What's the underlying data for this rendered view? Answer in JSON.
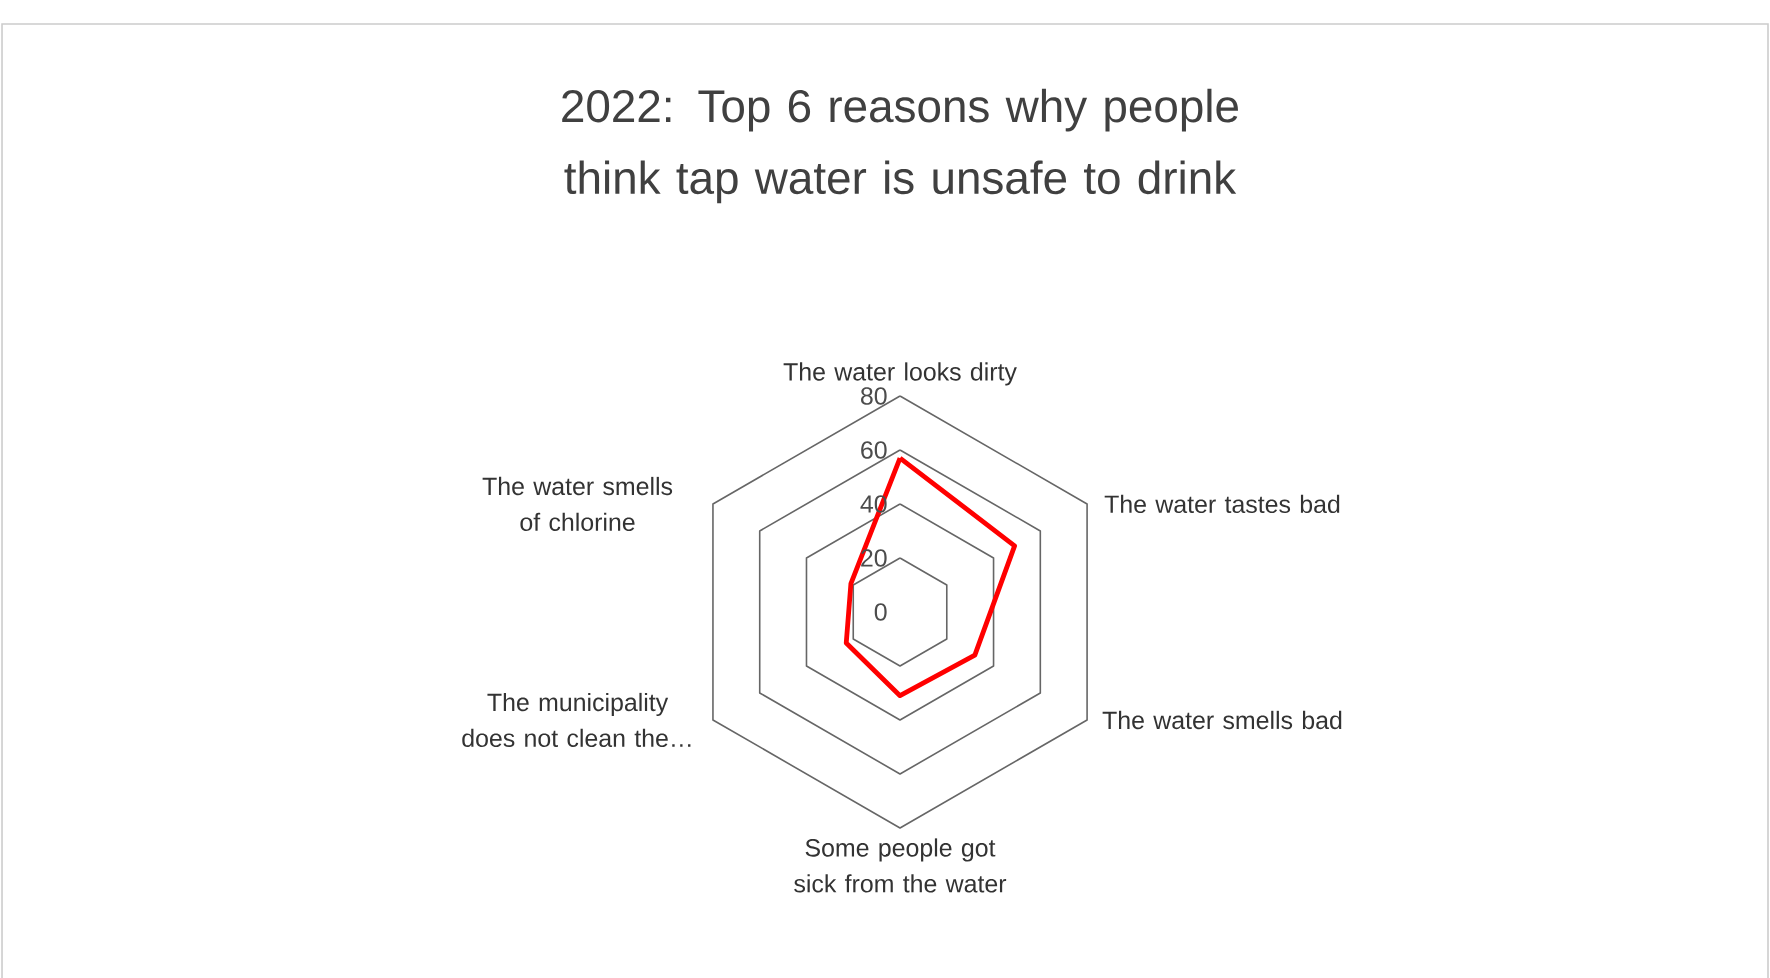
{
  "chart_data": {
    "type": "radar",
    "title": "2022: Top 6 reasons why people think tap water is unsafe to drink",
    "categories": [
      "The water looks dirty",
      "The water tastes bad",
      "The water smells bad",
      "Some people got sick from the water",
      "The municipality does not clean the…",
      "The water smells of chlorine"
    ],
    "series": [
      {
        "color": "#ff0000",
        "values": [
          57,
          49,
          32,
          31,
          23,
          21
        ]
      }
    ],
    "ylim": [
      0,
      80
    ],
    "yticks": [
      0,
      20,
      40,
      60,
      80
    ],
    "grid": true
  }
}
